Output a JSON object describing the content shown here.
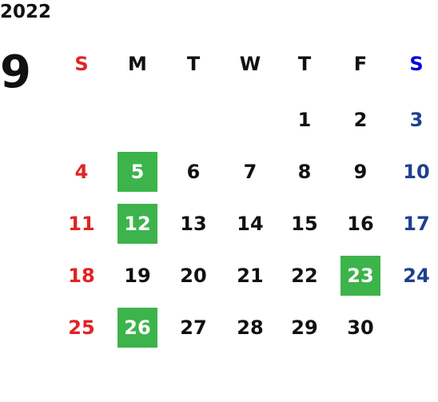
{
  "header": {
    "year": "2022",
    "month": "9"
  },
  "weekdays": [
    "S",
    "M",
    "T",
    "W",
    "T",
    "F",
    "S"
  ],
  "weeks": [
    [
      null,
      null,
      null,
      null,
      {
        "day": "1"
      },
      {
        "day": "2"
      },
      {
        "day": "3"
      }
    ],
    [
      {
        "day": "4"
      },
      {
        "day": "5",
        "highlight": true
      },
      {
        "day": "6"
      },
      {
        "day": "7"
      },
      {
        "day": "8"
      },
      {
        "day": "9"
      },
      {
        "day": "10"
      }
    ],
    [
      {
        "day": "11"
      },
      {
        "day": "12",
        "highlight": true
      },
      {
        "day": "13"
      },
      {
        "day": "14"
      },
      {
        "day": "15"
      },
      {
        "day": "16"
      },
      {
        "day": "17"
      }
    ],
    [
      {
        "day": "18"
      },
      {
        "day": "19"
      },
      {
        "day": "20"
      },
      {
        "day": "21"
      },
      {
        "day": "22"
      },
      {
        "day": "23",
        "highlight": true
      },
      {
        "day": "24"
      }
    ],
    [
      {
        "day": "25"
      },
      {
        "day": "26",
        "highlight": true
      },
      {
        "day": "27"
      },
      {
        "day": "28"
      },
      {
        "day": "29"
      },
      {
        "day": "30"
      },
      null
    ]
  ]
}
